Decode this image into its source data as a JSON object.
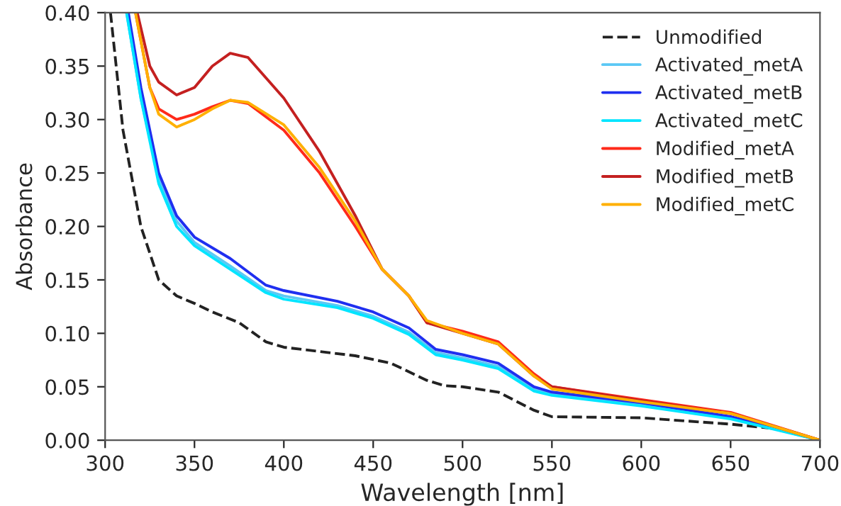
{
  "chart_data": {
    "type": "line",
    "xlabel": "Wavelength [nm]",
    "ylabel": "Absorbance",
    "xlim": [
      300,
      700
    ],
    "ylim": [
      0,
      0.4
    ],
    "xticks": [
      300,
      350,
      400,
      450,
      500,
      550,
      600,
      650,
      700
    ],
    "yticks": [
      {
        "value": 0,
        "label": "0.00"
      },
      {
        "value": 0.05,
        "label": "0.05"
      },
      {
        "value": 0.1,
        "label": "0.10"
      },
      {
        "value": 0.15,
        "label": "0.15"
      },
      {
        "value": 0.2,
        "label": "0.20"
      },
      {
        "value": 0.25,
        "label": "0.25"
      },
      {
        "value": 0.3,
        "label": "0.30"
      },
      {
        "value": 0.35,
        "label": "0.35"
      },
      {
        "value": 0.4,
        "label": "0.40"
      }
    ],
    "grid": false,
    "legend": "top right",
    "marker": "none",
    "series": [
      {
        "name": "Unmodified",
        "color": "#222222",
        "line_style": "dashed",
        "x": [
          303,
          310,
          320,
          330,
          340,
          350,
          360,
          375,
          390,
          400,
          420,
          440,
          460,
          480,
          490,
          500,
          520,
          540,
          550,
          600,
          650,
          680,
          700
        ],
        "values": [
          0.4,
          0.29,
          0.2,
          0.15,
          0.135,
          0.128,
          0.12,
          0.11,
          0.092,
          0.087,
          0.083,
          0.079,
          0.072,
          0.056,
          0.051,
          0.05,
          0.045,
          0.028,
          0.022,
          0.021,
          0.015,
          0.01,
          0.0
        ]
      },
      {
        "name": "Activated_metA",
        "color": "#5bc8f5",
        "x": [
          312,
          320,
          330,
          340,
          350,
          370,
          390,
          400,
          430,
          450,
          470,
          485,
          500,
          520,
          540,
          550,
          600,
          650,
          700
        ],
        "values": [
          0.4,
          0.32,
          0.245,
          0.205,
          0.185,
          0.163,
          0.14,
          0.135,
          0.126,
          0.116,
          0.101,
          0.082,
          0.077,
          0.069,
          0.048,
          0.043,
          0.033,
          0.021,
          0.0
        ]
      },
      {
        "name": "Activated_metB",
        "color": "#1f2ff0",
        "x": [
          313,
          320,
          330,
          340,
          350,
          370,
          390,
          400,
          430,
          450,
          470,
          485,
          500,
          520,
          540,
          550,
          600,
          650,
          700
        ],
        "values": [
          0.4,
          0.33,
          0.25,
          0.21,
          0.19,
          0.17,
          0.145,
          0.14,
          0.13,
          0.12,
          0.105,
          0.085,
          0.08,
          0.072,
          0.05,
          0.045,
          0.035,
          0.022,
          0.0
        ]
      },
      {
        "name": "Activated_metC",
        "color": "#00e5ff",
        "x": [
          312,
          320,
          330,
          340,
          350,
          370,
          390,
          400,
          430,
          450,
          470,
          485,
          500,
          520,
          540,
          550,
          600,
          650,
          700
        ],
        "values": [
          0.4,
          0.32,
          0.24,
          0.2,
          0.182,
          0.16,
          0.138,
          0.132,
          0.124,
          0.114,
          0.099,
          0.08,
          0.075,
          0.067,
          0.046,
          0.042,
          0.032,
          0.02,
          0.0
        ]
      },
      {
        "name": "Modified_metA",
        "color": "#ff2a1a",
        "x": [
          317,
          325,
          330,
          340,
          350,
          360,
          370,
          380,
          400,
          420,
          440,
          455,
          470,
          480,
          500,
          520,
          540,
          550,
          600,
          650,
          700
        ],
        "values": [
          0.4,
          0.33,
          0.31,
          0.3,
          0.305,
          0.312,
          0.318,
          0.315,
          0.29,
          0.25,
          0.2,
          0.16,
          0.135,
          0.11,
          0.102,
          0.092,
          0.062,
          0.05,
          0.038,
          0.026,
          0.0
        ]
      },
      {
        "name": "Modified_metB",
        "color": "#c42020",
        "x": [
          318,
          325,
          330,
          340,
          350,
          360,
          370,
          380,
          400,
          420,
          440,
          455,
          470,
          480,
          500,
          520,
          540,
          550,
          600,
          650,
          700
        ],
        "values": [
          0.4,
          0.35,
          0.335,
          0.323,
          0.33,
          0.35,
          0.362,
          0.358,
          0.32,
          0.27,
          0.21,
          0.16,
          0.135,
          0.11,
          0.1,
          0.09,
          0.06,
          0.05,
          0.037,
          0.025,
          0.0
        ]
      },
      {
        "name": "Modified_metC",
        "color": "#ffb000",
        "x": [
          317,
          325,
          330,
          340,
          350,
          360,
          370,
          380,
          400,
          420,
          440,
          455,
          470,
          480,
          500,
          520,
          540,
          550,
          600,
          650,
          700
        ],
        "values": [
          0.4,
          0.33,
          0.305,
          0.293,
          0.3,
          0.31,
          0.318,
          0.316,
          0.295,
          0.255,
          0.205,
          0.16,
          0.135,
          0.112,
          0.1,
          0.09,
          0.06,
          0.048,
          0.036,
          0.025,
          0.0
        ]
      }
    ]
  }
}
